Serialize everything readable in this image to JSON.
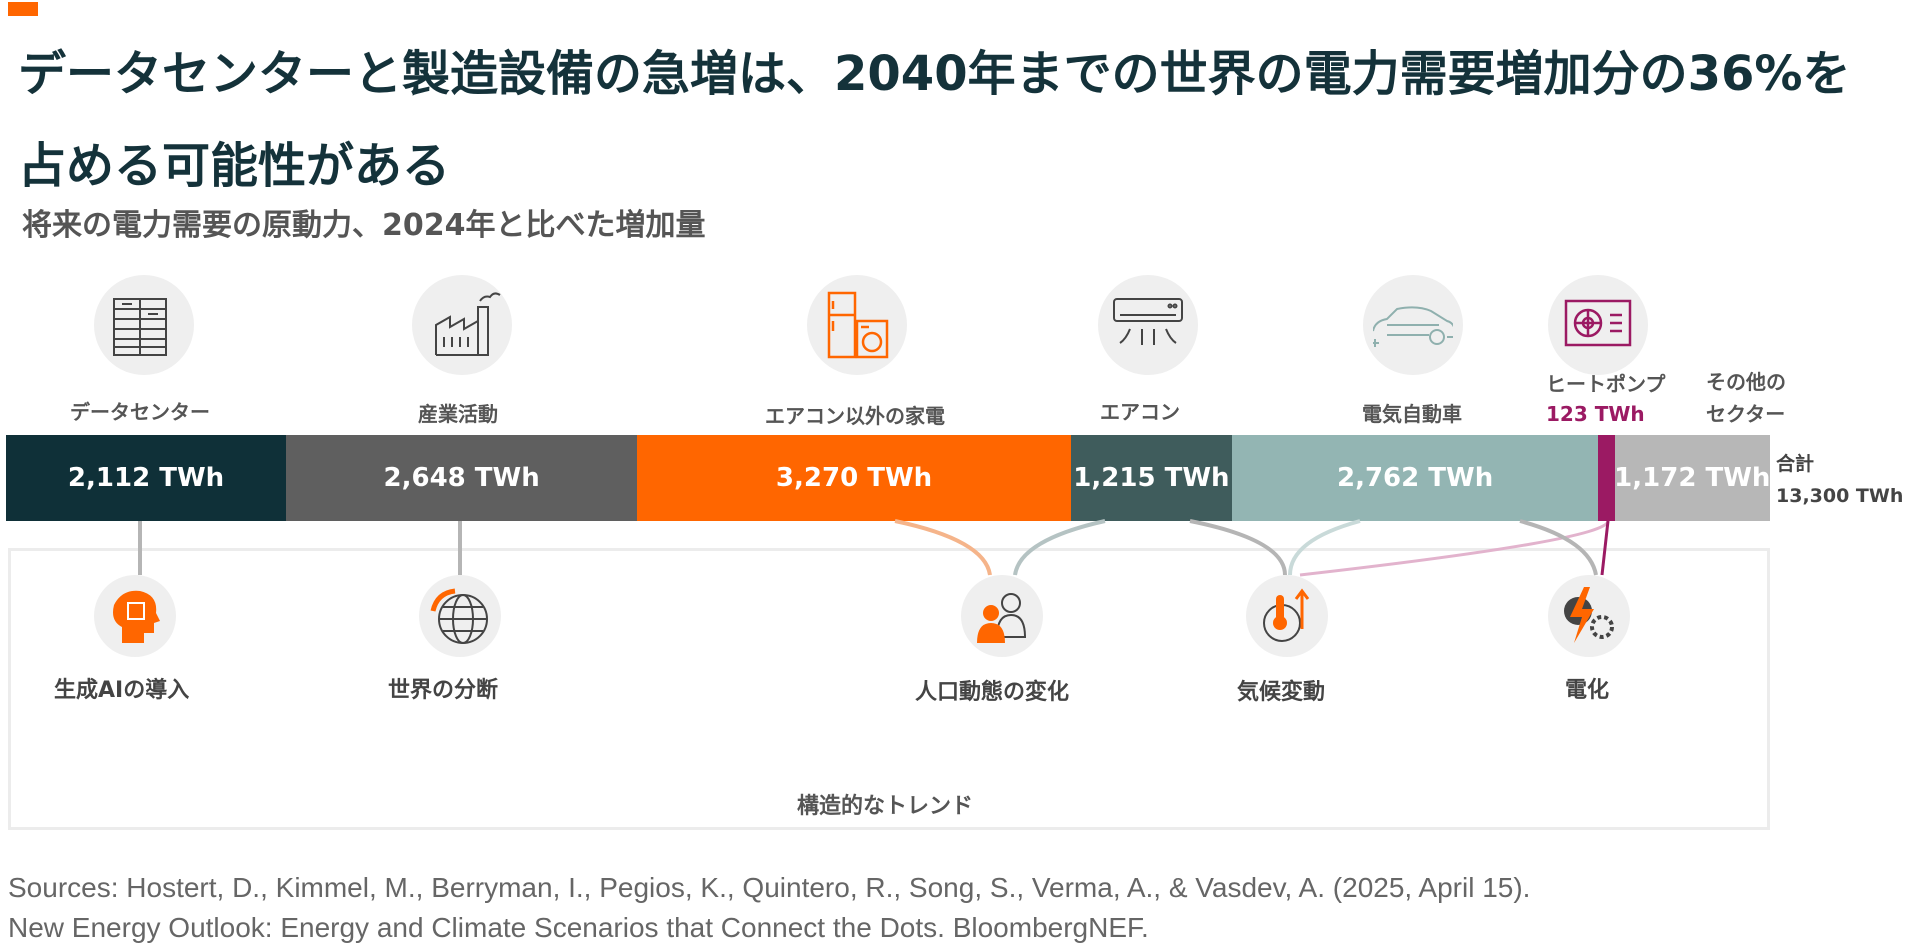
{
  "header": {
    "title": "データセンターと製造設備の急増は、2040年までの世界の電力需要増加分の36%を占める可能性がある",
    "subtitle": "将来の電力需要の原動力、2024年と比べた増加量"
  },
  "chart_data": {
    "type": "bar",
    "orientation": "horizontal-stacked",
    "unit": "TWh",
    "categories": [
      "データセンター",
      "産業活動",
      "エアコン以外の家電",
      "エアコン",
      "電気自動車",
      "ヒートポンプ",
      "その他のセクター"
    ],
    "values": [
      2112,
      2648,
      3270,
      1215,
      2762,
      123,
      1172
    ],
    "value_labels": [
      "2,112 TWh",
      "2,648 TWh",
      "3,270 TWh",
      "1,215 TWh",
      "2,762 TWh",
      "123 TWh",
      "1,172 TWh"
    ],
    "colors": [
      "#0f3038",
      "#5f5f5f",
      "#ff6600",
      "#3f5c5c",
      "#93b5b3",
      "#9b1a63",
      "#b7b7b7"
    ],
    "total_label": "合計",
    "total_value": "13,300 TWh",
    "sector_labels": {
      "heat_pump_line1": "ヒートポンプ",
      "other_line1": "その他の",
      "other_line2": "セクター"
    }
  },
  "trends": {
    "box_title": "構造的なトレンド",
    "items": [
      {
        "label": "生成AIの導入",
        "icon": "ai-head-icon"
      },
      {
        "label": "世界の分断",
        "icon": "globe-icon"
      },
      {
        "label": "人口動態の変化",
        "icon": "people-icon"
      },
      {
        "label": "気候変動",
        "icon": "climate-icon"
      },
      {
        "label": "電化",
        "icon": "electrification-icon"
      }
    ]
  },
  "icons": [
    "server-icon",
    "factory-icon",
    "appliances-icon",
    "air-conditioner-icon",
    "car-icon",
    "heat-pump-icon"
  ],
  "sources": {
    "line1": "Sources: Hostert, D., Kimmel, M., Berryman, I., Pegios, K., Quintero, R., Song, S., Verma, A., & Vasdev, A. (2025, April 15).",
    "line2": "New Energy Outlook: Energy and Climate Scenarios that Connect the Dots. BloombergNEF."
  }
}
